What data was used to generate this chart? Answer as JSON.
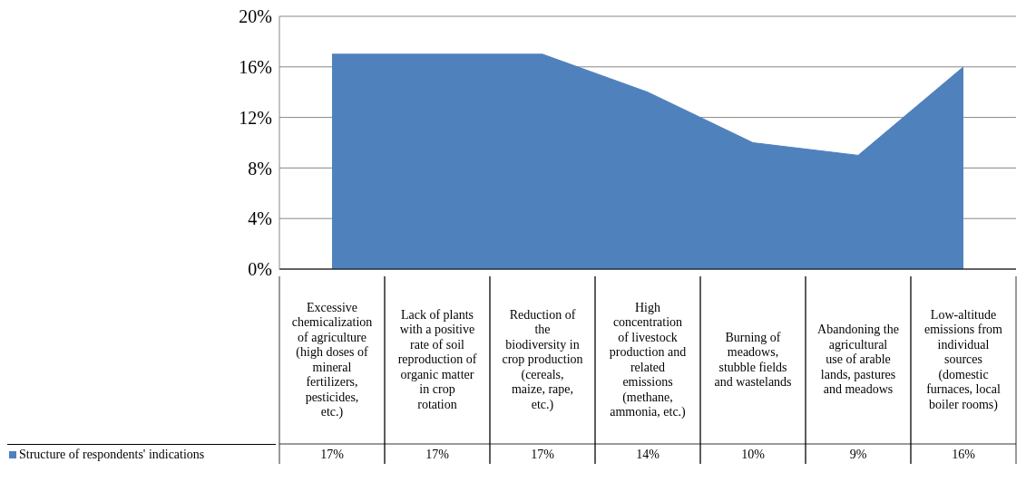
{
  "chart_data": {
    "type": "area",
    "categories": [
      "Excessive chemicalization of agriculture (high doses of mineral fertilizers, pesticides, etc.)",
      "Lack of plants with a positive rate of soil reproduction of organic matter in crop rotation",
      "Reduction of the biodiversity in crop production (cereals, maize, rape, etc.)",
      "High concentration of livestock production and related emissions (methane, ammonia, etc.)",
      "Burning of meadows, stubble fields and wastelands",
      "Abandoning the agricultural use of arable lands, pastures and meadows",
      "Low-altitude emissions from individual sources (domestic furnaces, local boiler rooms)"
    ],
    "series": [
      {
        "name": "Structure of respondents' indications",
        "color": "#4f81bd",
        "values": [
          17,
          17,
          17,
          14,
          10,
          9,
          16
        ],
        "value_labels": [
          "17%",
          "17%",
          "17%",
          "14%",
          "10%",
          "9%",
          "16%"
        ]
      }
    ],
    "ylim": [
      0,
      20
    ],
    "yticks": [
      {
        "value": 0,
        "label": "0%"
      },
      {
        "value": 4,
        "label": "4%"
      },
      {
        "value": 8,
        "label": "8%"
      },
      {
        "value": 12,
        "label": "12%"
      },
      {
        "value": 16,
        "label": "16%"
      },
      {
        "value": 20,
        "label": "20%"
      }
    ],
    "grid": "y",
    "legend": "bottom left"
  }
}
